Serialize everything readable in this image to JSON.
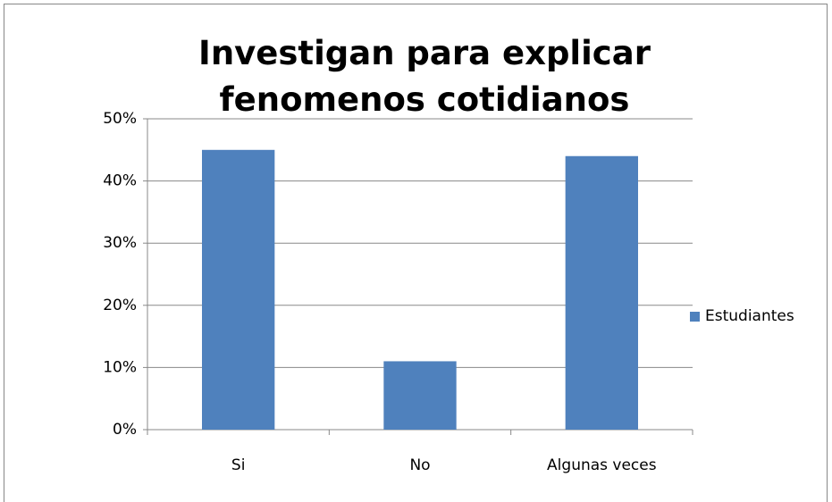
{
  "chart_data": {
    "type": "bar",
    "title": "Investigan para explicar fenomenos cotidianos",
    "categories": [
      "Si",
      "No",
      "Algunas veces"
    ],
    "series": [
      {
        "name": "Estudiantes",
        "color": "#4f81bd",
        "values": [
          45,
          11,
          44
        ]
      }
    ],
    "ylim": [
      0,
      50
    ],
    "yticks": [
      {
        "value": 0,
        "label": "0%"
      },
      {
        "value": 10,
        "label": "10%"
      },
      {
        "value": 20,
        "label": "20%"
      },
      {
        "value": 30,
        "label": "30%"
      },
      {
        "value": 40,
        "label": "40%"
      },
      {
        "value": 50,
        "label": "50%"
      }
    ],
    "grid": true,
    "legend": "right"
  }
}
